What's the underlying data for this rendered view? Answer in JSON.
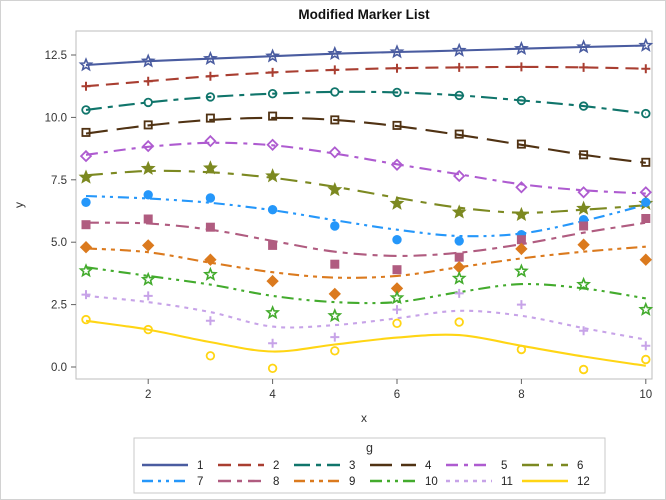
{
  "chart_data": {
    "type": "line",
    "title": "Modified Marker List",
    "xlabel": "x",
    "ylabel": "y",
    "x": [
      1,
      2,
      3,
      4,
      5,
      6,
      7,
      8,
      9,
      10
    ],
    "xticks": [
      2,
      4,
      6,
      8,
      10
    ],
    "xtick_labels": [
      "2",
      "4",
      "6",
      "8",
      "10"
    ],
    "yticks": [
      0,
      2.5,
      5,
      7.5,
      10,
      12.5
    ],
    "ytick_labels": [
      "0.0",
      "2.5",
      "5.0",
      "7.5",
      "10.0",
      "12.5"
    ],
    "xlim": [
      0.84,
      10.1
    ],
    "ylim": [
      -0.48,
      13.46
    ],
    "grid": false,
    "legend_title": "g",
    "legend_position": "bottom",
    "frame_color": "#bdbdbd",
    "tick_color": "#616161",
    "label_color": "#333333",
    "series": [
      {
        "name": "1",
        "color": "#4A5CA0",
        "dash": "",
        "marker": "star",
        "filled": false,
        "line": [
          12.1,
          12.25,
          12.35,
          12.45,
          12.55,
          12.62,
          12.68,
          12.75,
          12.82,
          12.88
        ],
        "points": [
          12.1,
          12.25,
          12.35,
          12.45,
          12.55,
          12.62,
          12.68,
          12.75,
          12.82,
          12.88
        ]
      },
      {
        "name": "2",
        "color": "#A93E31",
        "dash": "13 7",
        "marker": "plus",
        "filled": false,
        "line": [
          11.25,
          11.45,
          11.65,
          11.8,
          11.9,
          11.97,
          12.0,
          12.02,
          12.0,
          11.95
        ],
        "points": [
          11.25,
          11.45,
          11.65,
          11.8,
          11.9,
          11.97,
          12.0,
          12.02,
          12.0,
          11.95
        ]
      },
      {
        "name": "3",
        "color": "#10756B",
        "dash": "16 6 5 6",
        "marker": "circle",
        "filled": false,
        "line": [
          10.3,
          10.6,
          10.82,
          10.95,
          11.02,
          11.0,
          10.88,
          10.68,
          10.45,
          10.15
        ],
        "points": [
          10.3,
          10.6,
          10.82,
          10.95,
          11.02,
          11.0,
          10.88,
          10.68,
          10.45,
          10.15
        ]
      },
      {
        "name": "4",
        "color": "#503213",
        "dash": "22 9",
        "marker": "square",
        "filled": false,
        "line": [
          9.35,
          9.68,
          9.9,
          9.98,
          9.9,
          9.65,
          9.3,
          8.9,
          8.5,
          8.18
        ],
        "points": [
          9.4,
          9.7,
          9.97,
          10.05,
          9.9,
          9.68,
          9.33,
          8.93,
          8.5,
          8.2
        ]
      },
      {
        "name": "5",
        "color": "#AE5BD0",
        "dash": "12 6 4 6",
        "marker": "diamond",
        "filled": false,
        "line": [
          8.5,
          8.82,
          8.98,
          8.88,
          8.55,
          8.12,
          7.72,
          7.32,
          7.08,
          6.95
        ],
        "points": [
          8.45,
          8.85,
          9.05,
          8.9,
          8.6,
          8.1,
          7.65,
          7.2,
          7.0,
          7.0
        ]
      },
      {
        "name": "6",
        "color": "#7C8921",
        "dash": "17 8 6 8",
        "marker": "star",
        "filled": true,
        "line": [
          7.68,
          7.85,
          7.8,
          7.58,
          7.22,
          6.78,
          6.38,
          6.18,
          6.3,
          6.48
        ],
        "points": [
          7.6,
          7.95,
          7.97,
          7.65,
          7.1,
          6.55,
          6.2,
          6.1,
          6.35,
          6.55
        ]
      },
      {
        "name": "7",
        "color": "#2597FA",
        "dash": "11 5 3 5 3 5",
        "marker": "circle",
        "filled": true,
        "line": [
          6.85,
          6.75,
          6.58,
          6.28,
          5.88,
          5.5,
          5.25,
          5.35,
          5.85,
          6.5
        ],
        "points": [
          6.6,
          6.9,
          6.77,
          6.3,
          5.65,
          5.1,
          5.05,
          5.3,
          5.9,
          6.6
        ]
      },
      {
        "name": "8",
        "color": "#B05C80",
        "dash": "13 6 5 6",
        "marker": "square",
        "filled": true,
        "line": [
          5.78,
          5.75,
          5.5,
          5.05,
          4.62,
          4.45,
          4.58,
          4.92,
          5.38,
          5.78
        ],
        "points": [
          5.7,
          5.93,
          5.6,
          4.87,
          4.12,
          3.9,
          4.4,
          5.1,
          5.65,
          5.95
        ]
      },
      {
        "name": "9",
        "color": "#DB7A1E",
        "dash": "11 5 4 5 4 5",
        "marker": "diamond",
        "filled": true,
        "line": [
          4.75,
          4.6,
          4.18,
          3.8,
          3.58,
          3.65,
          4.0,
          4.35,
          4.62,
          4.82
        ],
        "points": [
          4.8,
          4.87,
          4.3,
          3.44,
          2.93,
          3.15,
          4.0,
          4.73,
          4.9,
          4.3
        ]
      },
      {
        "name": "10",
        "color": "#43AB2D",
        "dash": "12 5 3 5 3 5",
        "marker": "star",
        "filled": false,
        "line": [
          4.0,
          3.65,
          3.3,
          2.85,
          2.6,
          2.6,
          3.0,
          3.32,
          3.15,
          2.75
        ],
        "points": [
          3.85,
          3.5,
          3.7,
          2.17,
          2.05,
          2.77,
          3.55,
          3.84,
          3.3,
          2.3
        ]
      },
      {
        "name": "11",
        "color": "#C7A3E8",
        "dash": "4 5",
        "marker": "plus",
        "filled": false,
        "line": [
          2.85,
          2.6,
          2.2,
          1.62,
          1.68,
          1.95,
          2.25,
          2.05,
          1.56,
          1.1
        ],
        "points": [
          2.9,
          2.85,
          1.85,
          0.95,
          1.2,
          2.3,
          2.95,
          2.5,
          1.45,
          0.85
        ]
      },
      {
        "name": "12",
        "color": "#FFD514",
        "dash": "",
        "marker": "circle",
        "filled": false,
        "line": [
          1.85,
          1.5,
          1.0,
          0.62,
          0.9,
          1.18,
          1.28,
          0.85,
          0.42,
          0.05
        ],
        "points": [
          1.9,
          1.5,
          0.45,
          -0.05,
          0.65,
          1.75,
          1.8,
          0.7,
          -0.1,
          0.3
        ]
      }
    ]
  }
}
